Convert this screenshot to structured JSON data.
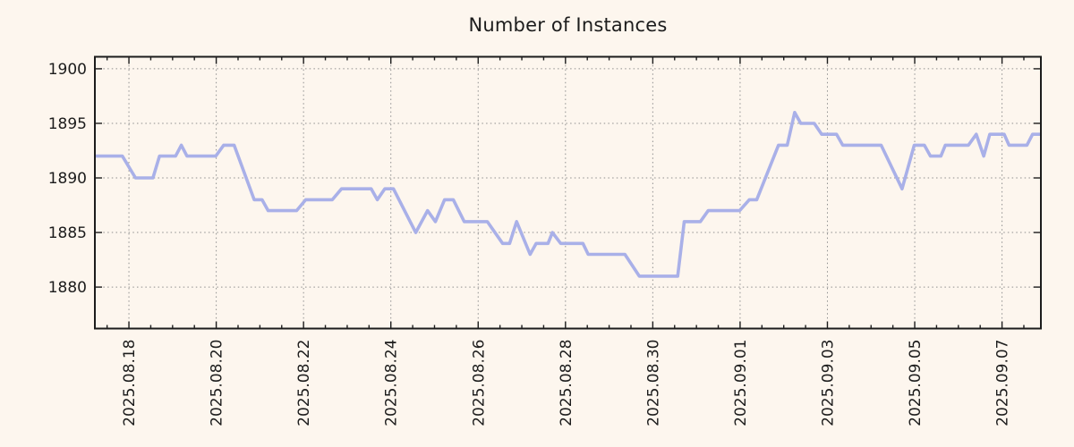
{
  "chart_data": {
    "type": "line",
    "title": "Number of Instances",
    "legend": "none",
    "grid": "dotted-at-major-ticks",
    "colors": {
      "background": "#fdf6ee",
      "line": "#a9b0e8",
      "grid": "#8f8f8f",
      "axis": "#1c1c1c",
      "text": "#1c1c1c"
    },
    "x_axis": {
      "unit": "days since 2025-08-18 00:00",
      "range": [
        -0.78,
        20.89
      ],
      "major_tick_step_days": 2,
      "minor_tick_step_days": 0.5,
      "major_ticks": [
        {
          "t": 0,
          "label": "2025.08.18"
        },
        {
          "t": 2,
          "label": "2025.08.20"
        },
        {
          "t": 4,
          "label": "2025.08.22"
        },
        {
          "t": 6,
          "label": "2025.08.24"
        },
        {
          "t": 8,
          "label": "2025.08.26"
        },
        {
          "t": 10,
          "label": "2025.08.28"
        },
        {
          "t": 12,
          "label": "2025.08.30"
        },
        {
          "t": 14,
          "label": "2025.09.01"
        },
        {
          "t": 16,
          "label": "2025.09.03"
        },
        {
          "t": 18,
          "label": "2025.09.05"
        },
        {
          "t": 20,
          "label": "2025.09.07"
        }
      ]
    },
    "y_axis": {
      "range": [
        1876.2,
        1901.1
      ],
      "major_ticks": [
        1880,
        1885,
        1890,
        1895,
        1900
      ]
    },
    "series": [
      {
        "name": "instances",
        "points": [
          [
            -0.78,
            1892
          ],
          [
            -0.15,
            1892
          ],
          [
            0.15,
            1890
          ],
          [
            0.55,
            1890
          ],
          [
            0.7,
            1892
          ],
          [
            1.07,
            1892
          ],
          [
            1.2,
            1893
          ],
          [
            1.33,
            1892
          ],
          [
            1.99,
            1892
          ],
          [
            2.17,
            1893
          ],
          [
            2.41,
            1893
          ],
          [
            2.87,
            1888
          ],
          [
            3.05,
            1888
          ],
          [
            3.19,
            1887
          ],
          [
            3.84,
            1887
          ],
          [
            4.05,
            1888
          ],
          [
            4.66,
            1888
          ],
          [
            4.87,
            1889
          ],
          [
            5.55,
            1889
          ],
          [
            5.69,
            1888
          ],
          [
            5.86,
            1889
          ],
          [
            6.06,
            1889
          ],
          [
            6.57,
            1885
          ],
          [
            6.84,
            1887
          ],
          [
            7.02,
            1886
          ],
          [
            7.23,
            1888
          ],
          [
            7.43,
            1888
          ],
          [
            7.68,
            1886
          ],
          [
            8.21,
            1886
          ],
          [
            8.56,
            1884
          ],
          [
            8.72,
            1884
          ],
          [
            8.88,
            1886
          ],
          [
            9.19,
            1883
          ],
          [
            9.33,
            1884
          ],
          [
            9.6,
            1884
          ],
          [
            9.7,
            1885
          ],
          [
            9.89,
            1884
          ],
          [
            10.4,
            1884
          ],
          [
            10.52,
            1883
          ],
          [
            11.36,
            1883
          ],
          [
            11.69,
            1881
          ],
          [
            12.57,
            1881
          ],
          [
            12.72,
            1886
          ],
          [
            13.09,
            1886
          ],
          [
            13.27,
            1887
          ],
          [
            13.99,
            1887
          ],
          [
            14.21,
            1888
          ],
          [
            14.38,
            1888
          ],
          [
            14.88,
            1893
          ],
          [
            15.08,
            1893
          ],
          [
            15.25,
            1896
          ],
          [
            15.39,
            1895
          ],
          [
            15.7,
            1895
          ],
          [
            15.87,
            1894
          ],
          [
            16.21,
            1894
          ],
          [
            16.35,
            1893
          ],
          [
            17.23,
            1893
          ],
          [
            17.71,
            1889
          ],
          [
            17.99,
            1893
          ],
          [
            18.22,
            1893
          ],
          [
            18.36,
            1892
          ],
          [
            18.6,
            1892
          ],
          [
            18.7,
            1893
          ],
          [
            19.23,
            1893
          ],
          [
            19.41,
            1894
          ],
          [
            19.58,
            1892
          ],
          [
            19.72,
            1894
          ],
          [
            20.05,
            1894
          ],
          [
            20.16,
            1893
          ],
          [
            20.57,
            1893
          ],
          [
            20.7,
            1894
          ],
          [
            20.89,
            1894
          ]
        ]
      }
    ]
  }
}
